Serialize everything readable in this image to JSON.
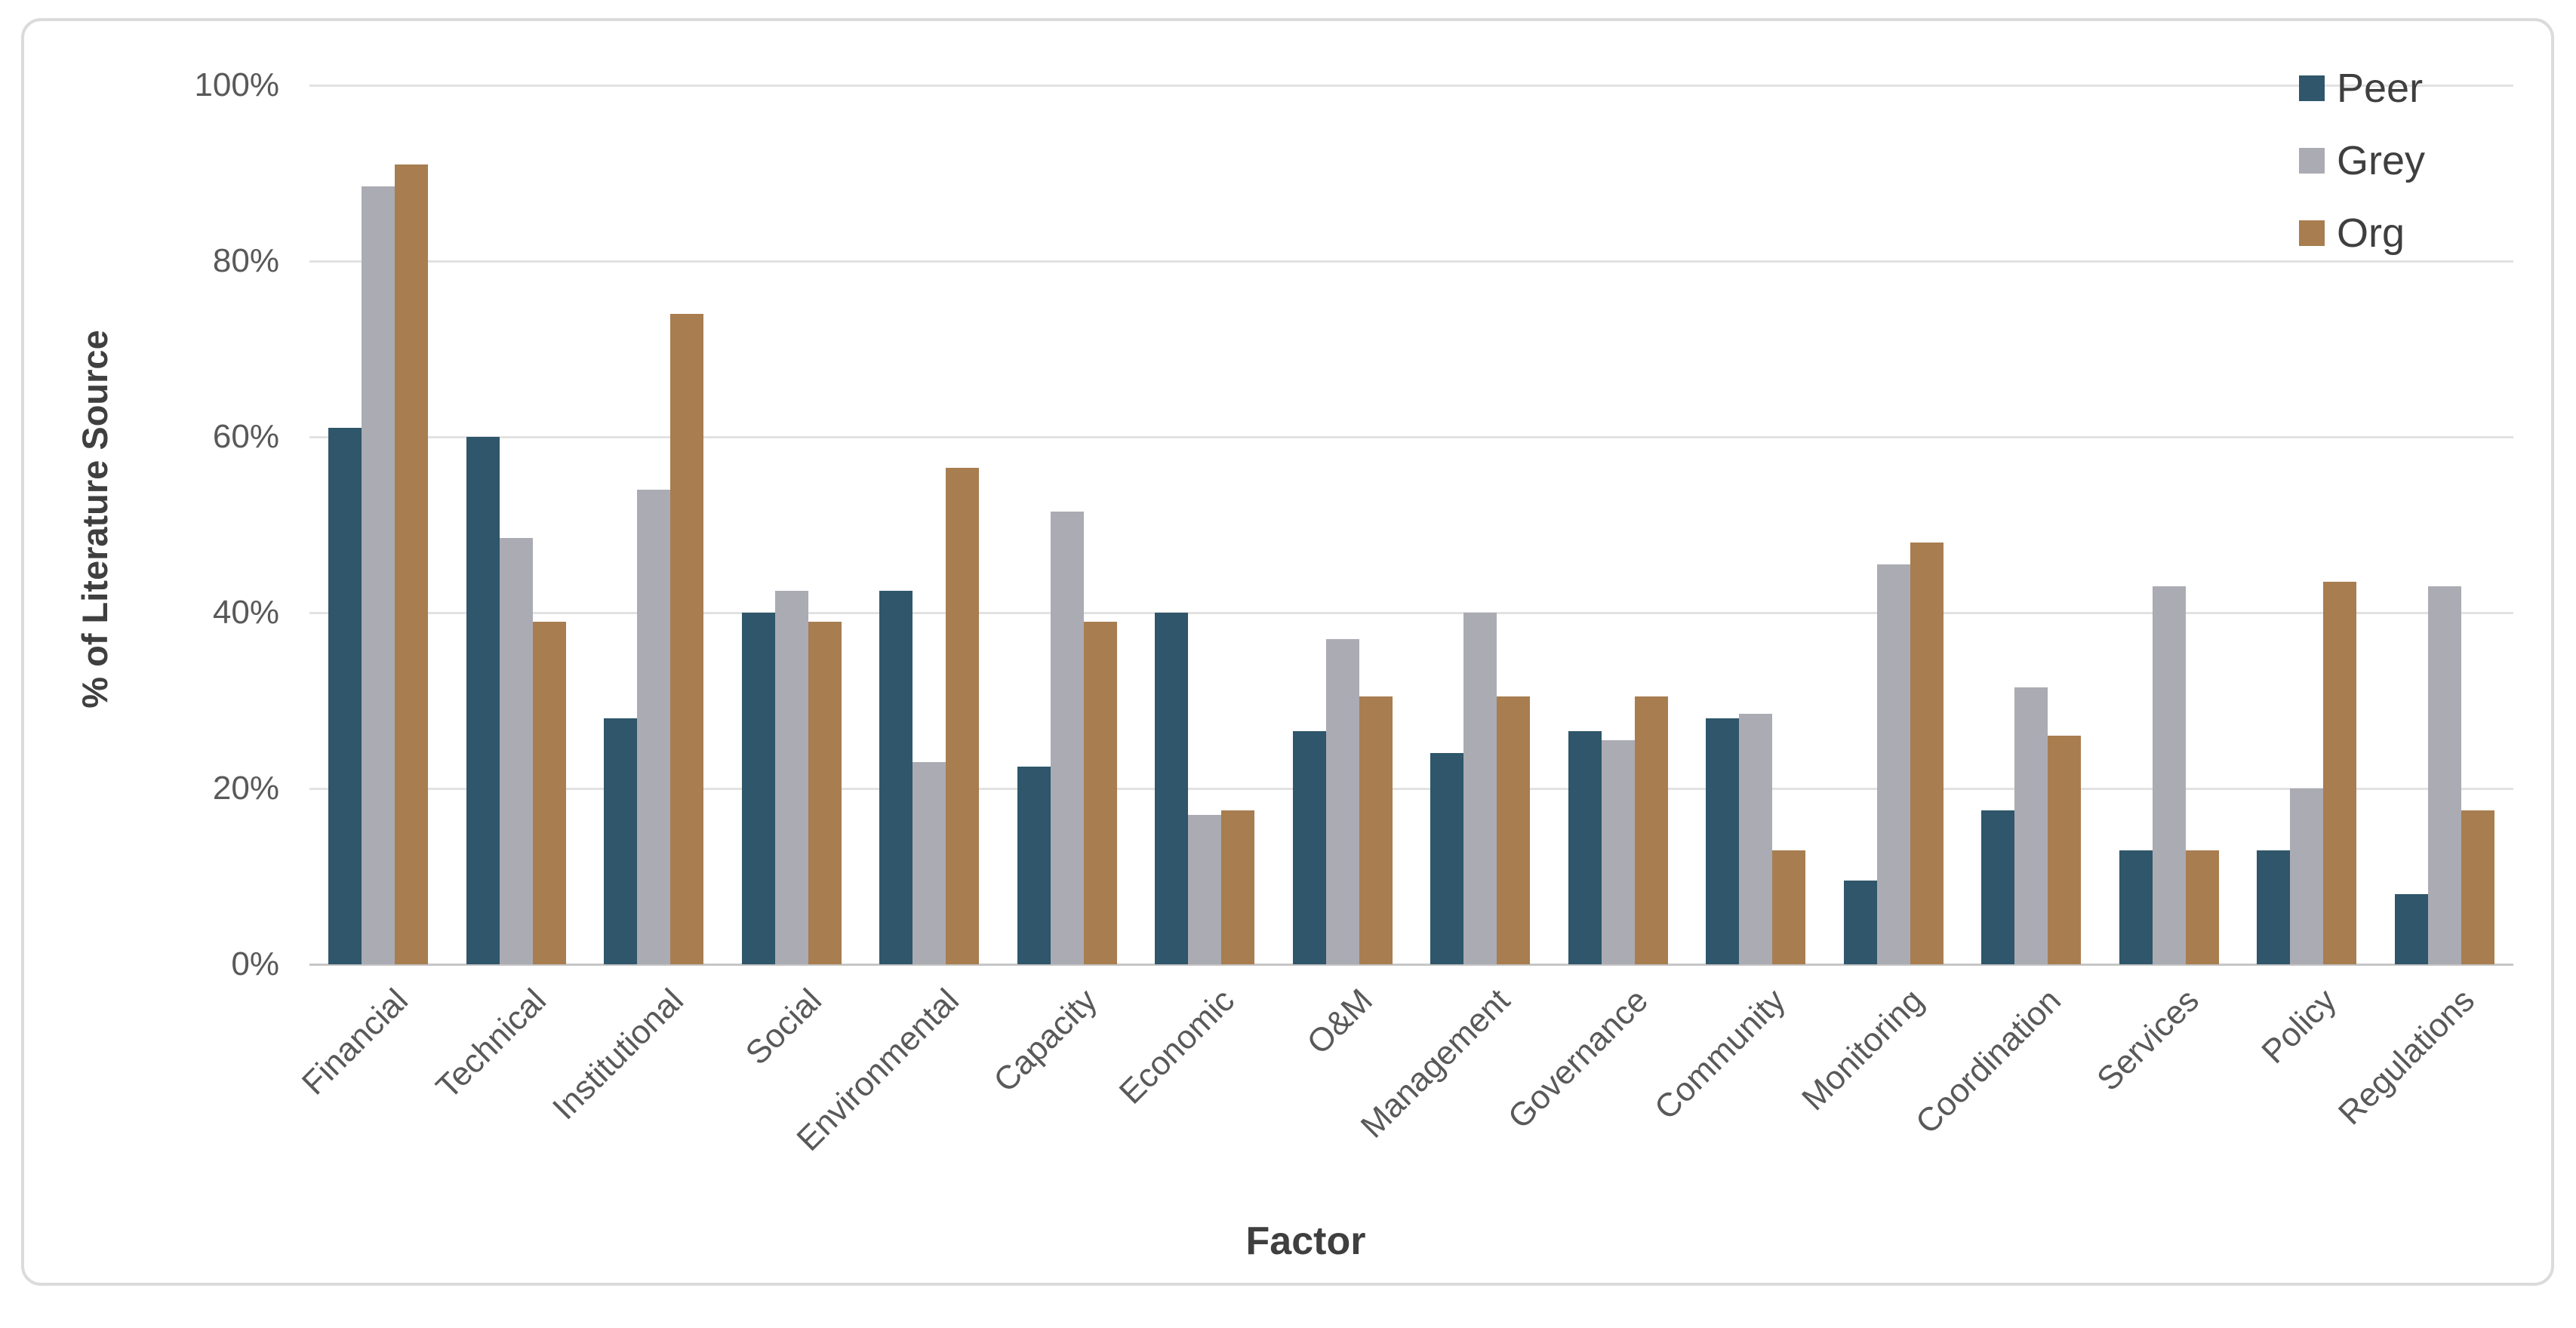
{
  "chart_data": {
    "type": "bar",
    "title": "",
    "xlabel": "Factor",
    "ylabel": "% of Literature Source",
    "categories": [
      "Financial",
      "Technical",
      "Institutional",
      "Social",
      "Environmental",
      "Capacity",
      "Economic",
      "O&M",
      "Management",
      "Governance",
      "Community",
      "Monitoring",
      "Coordination",
      "Services",
      "Policy",
      "Regulations"
    ],
    "series": [
      {
        "name": "Peer",
        "color": "#2F566A",
        "values": [
          61,
          60,
          28,
          40,
          42.5,
          22.5,
          40,
          26.5,
          24,
          26.5,
          28,
          9.5,
          17.5,
          13,
          13,
          8
        ]
      },
      {
        "name": "Grey",
        "color": "#ABABB3",
        "values": [
          88.5,
          48.5,
          54,
          42.5,
          23,
          51.5,
          17,
          37,
          40,
          25.5,
          28.5,
          45.5,
          31.5,
          43,
          20,
          43
        ]
      },
      {
        "name": "Org",
        "color": "#A87D50",
        "values": [
          91,
          39,
          74,
          39,
          56.5,
          39,
          17.5,
          30.5,
          30.5,
          30.5,
          13,
          48,
          26,
          13,
          43.5,
          17.5
        ]
      }
    ],
    "y_ticks": [
      "0%",
      "20%",
      "40%",
      "60%",
      "80%",
      "100%"
    ],
    "y_tick_values": [
      0,
      20,
      40,
      60,
      80,
      100
    ],
    "ylim": [
      0,
      100
    ],
    "grid": true,
    "legend_position": "top-right"
  },
  "style": {
    "gridline_color": "#E2E2E2",
    "baseline_color": "#C6C6C6",
    "tick_label_color": "#595959",
    "axis_title_color": "#3F3F3F",
    "frame_border_color": "#DBDBDB",
    "background": "#FFFFFF"
  }
}
